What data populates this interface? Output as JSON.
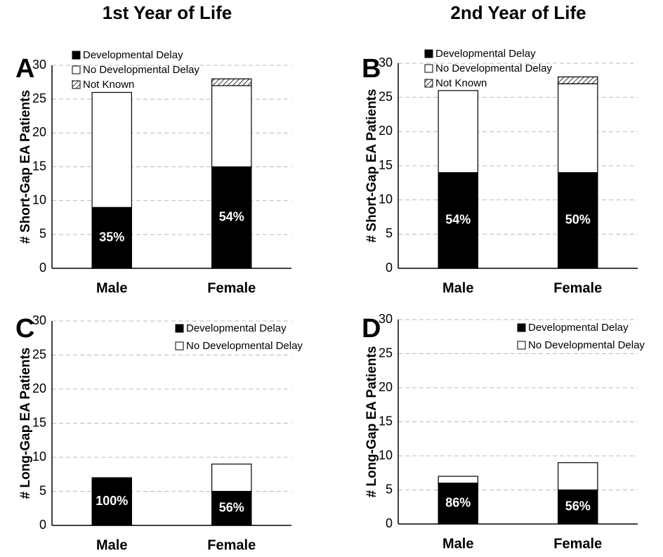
{
  "column_titles": [
    "1st Year of Life",
    "2nd Year of Life"
  ],
  "chart_data": [
    {
      "type": "bar",
      "stacked": true,
      "panel": "A",
      "ylabel": "# Short-Gap EA Patients",
      "categories": [
        "Male",
        "Female"
      ],
      "series": [
        {
          "name": "Developmental Delay",
          "color": "#000000",
          "values": [
            9,
            15
          ]
        },
        {
          "name": "No Developmental Delay",
          "color": "#ffffff",
          "values": [
            17,
            12
          ]
        },
        {
          "name": "Not Known",
          "color": "#ffffff",
          "pattern": "hatch",
          "values": [
            0,
            1
          ]
        }
      ],
      "percent_labels": [
        "35%",
        "54%"
      ],
      "ylim": [
        0,
        30
      ],
      "yticks": [
        0,
        5,
        10,
        15,
        20,
        25,
        30
      ],
      "grid": true
    },
    {
      "type": "bar",
      "stacked": true,
      "panel": "B",
      "ylabel": "# Short-Gap EA Patients",
      "categories": [
        "Male",
        "Female"
      ],
      "series": [
        {
          "name": "Developmental Delay",
          "color": "#000000",
          "values": [
            14,
            14
          ]
        },
        {
          "name": "No Developmental Delay",
          "color": "#ffffff",
          "values": [
            12,
            13
          ]
        },
        {
          "name": "Not Known",
          "color": "#ffffff",
          "pattern": "hatch",
          "values": [
            0,
            1
          ]
        }
      ],
      "percent_labels": [
        "54%",
        "50%"
      ],
      "ylim": [
        0,
        30
      ],
      "yticks": [
        0,
        5,
        10,
        15,
        20,
        25,
        30
      ],
      "grid": true
    },
    {
      "type": "bar",
      "stacked": true,
      "panel": "C",
      "ylabel": "# Long-Gap EA Patients",
      "categories": [
        "Male",
        "Female"
      ],
      "series": [
        {
          "name": "Developmental Delay",
          "color": "#000000",
          "values": [
            7,
            5
          ]
        },
        {
          "name": "No Developmental Delay",
          "color": "#ffffff",
          "values": [
            0,
            4
          ]
        }
      ],
      "percent_labels": [
        "100%",
        "56%"
      ],
      "ylim": [
        0,
        30
      ],
      "yticks": [
        0,
        5,
        10,
        15,
        20,
        25,
        30
      ],
      "grid": true
    },
    {
      "type": "bar",
      "stacked": true,
      "panel": "D",
      "ylabel": "# Long-Gap EA Patients",
      "categories": [
        "Male",
        "Female"
      ],
      "series": [
        {
          "name": "Developmental Delay",
          "color": "#000000",
          "values": [
            6,
            5
          ]
        },
        {
          "name": "No Developmental Delay",
          "color": "#ffffff",
          "values": [
            1,
            4
          ]
        }
      ],
      "percent_labels": [
        "86%",
        "56%"
      ],
      "ylim": [
        0,
        30
      ],
      "yticks": [
        0,
        5,
        10,
        15,
        20,
        25,
        30
      ],
      "grid": true
    }
  ]
}
